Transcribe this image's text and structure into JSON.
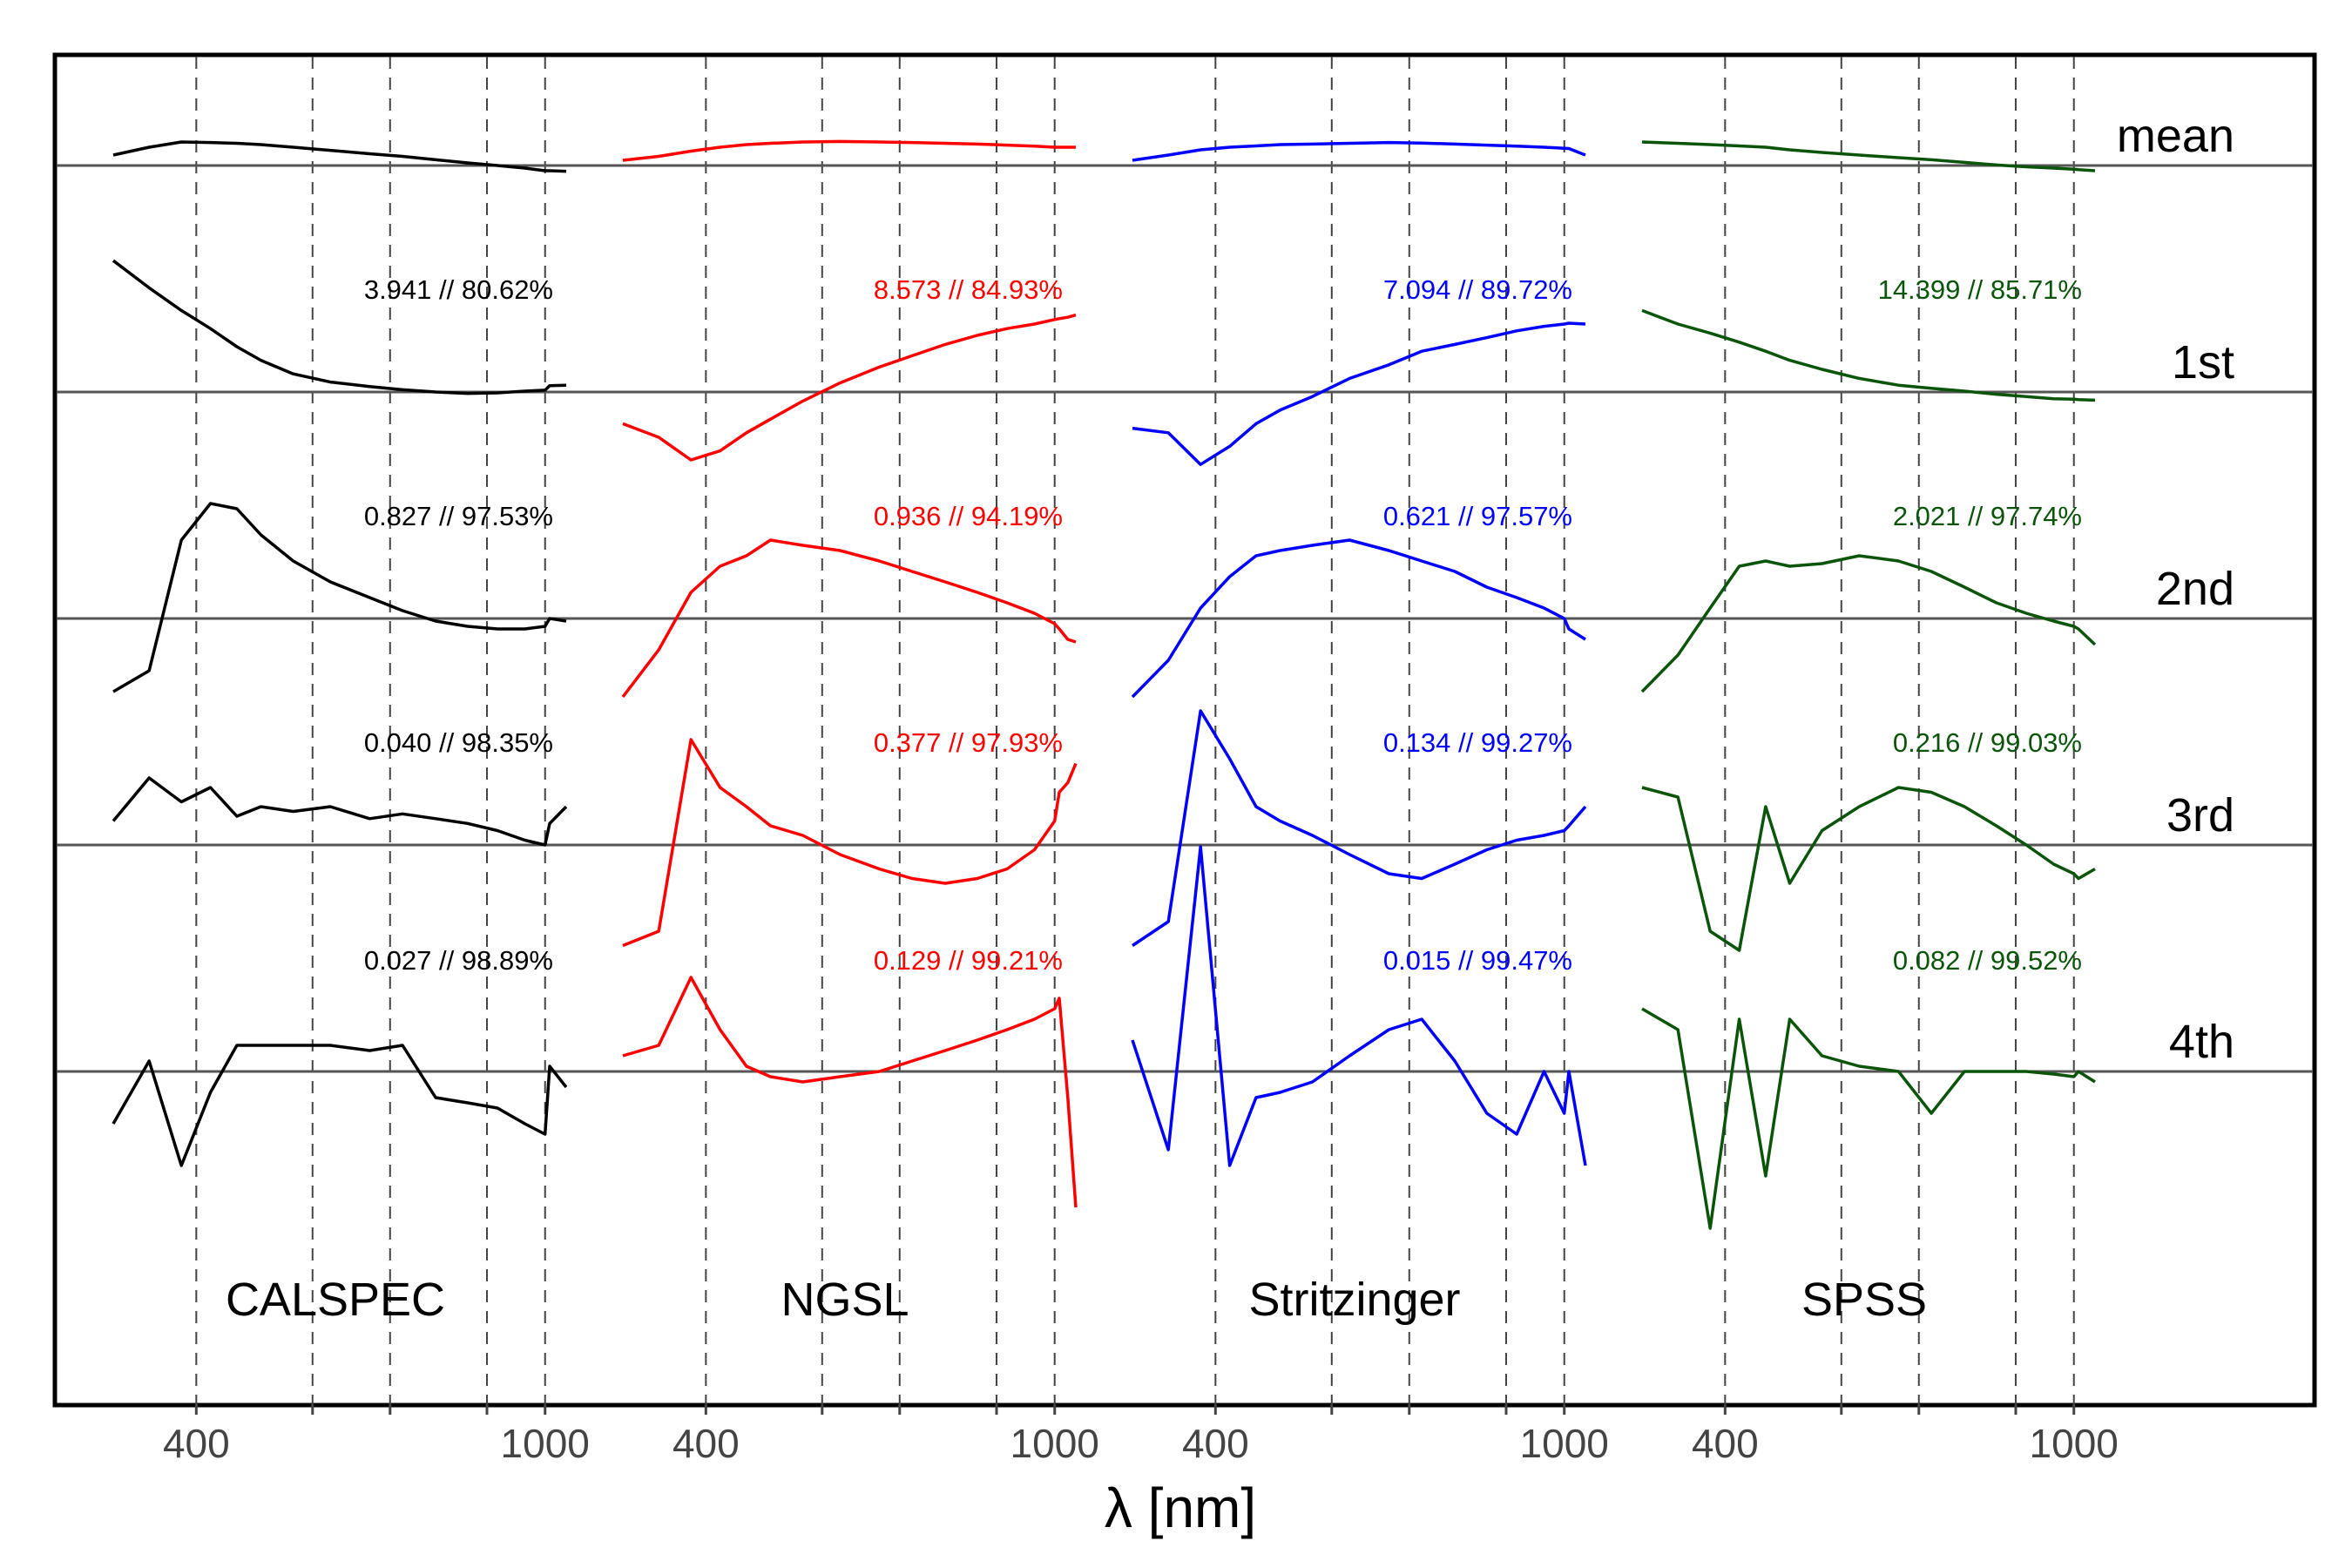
{
  "chart_data": {
    "type": "line",
    "title": "",
    "xlabel": "λ [nm]",
    "ylabel": "",
    "x_scale": "reciprocal",
    "xlim": [
      350,
      1100
    ],
    "xticks": [
      400,
      500,
      600,
      800,
      1000
    ],
    "xtick_labels": [
      "400",
      "",
      "",
      "",
      "1000"
    ],
    "grid": "vertical dashed at ticks",
    "rows": [
      "mean",
      "1st",
      "2nd",
      "3rd",
      "4th"
    ],
    "panels": [
      {
        "name": "CALSPEC",
        "color": "#000000",
        "annotations": [
          "3.941 // 80.62%",
          "0.827 // 97.53%",
          "0.040 // 98.35%",
          "0.027 // 98.89%"
        ],
        "series": {
          "x": [
            350,
            370,
            390,
            410,
            430,
            450,
            480,
            520,
            570,
            620,
            680,
            750,
            830,
            920,
            1000,
            1020,
            1100
          ],
          "mean": [
            0.4,
            0.7,
            0.9,
            0.88,
            0.85,
            0.8,
            0.7,
            0.58,
            0.45,
            0.35,
            0.22,
            0.1,
            0.0,
            -0.1,
            -0.2,
            -0.2,
            -0.22
          ],
          "1st": [
            2.9,
            2.3,
            1.8,
            1.4,
            1.0,
            0.7,
            0.4,
            0.22,
            0.12,
            0.05,
            0.0,
            -0.03,
            -0.02,
            0.02,
            0.04,
            0.14,
            0.15
          ],
          "2nd": [
            -1.4,
            -1.0,
            1.5,
            2.2,
            2.1,
            1.6,
            1.1,
            0.7,
            0.4,
            0.15,
            -0.05,
            -0.15,
            -0.2,
            -0.2,
            -0.15,
            0.0,
            -0.05
          ],
          "3rd": [
            0.5,
            1.4,
            0.9,
            1.2,
            0.6,
            0.8,
            0.7,
            0.8,
            0.55,
            0.65,
            0.55,
            0.45,
            0.3,
            0.1,
            0.0,
            0.45,
            0.8
          ],
          "4th": [
            -1.0,
            0.2,
            -1.8,
            -0.4,
            0.5,
            0.5,
            0.5,
            0.5,
            0.4,
            0.5,
            -0.5,
            -0.6,
            -0.7,
            -1.0,
            -1.2,
            0.1,
            -0.3
          ]
        }
      },
      {
        "name": "NGSL",
        "color": "#ff0000",
        "annotations": [
          "8.573 // 84.93%",
          "0.936 // 94.19%",
          "0.377 // 97.93%",
          "0.129 // 99.21%"
        ],
        "series": {
          "x": [
            350,
            370,
            390,
            410,
            430,
            450,
            480,
            520,
            570,
            620,
            680,
            750,
            830,
            920,
            1000,
            1020,
            1060,
            1100
          ],
          "mean": [
            0.2,
            0.35,
            0.55,
            0.7,
            0.8,
            0.85,
            0.9,
            0.92,
            0.9,
            0.88,
            0.85,
            0.82,
            0.78,
            0.74,
            0.7,
            0.7,
            0.7,
            0.7
          ],
          "1st": [
            -0.7,
            -1.0,
            -1.5,
            -1.3,
            -0.9,
            -0.6,
            -0.2,
            0.2,
            0.55,
            0.8,
            1.05,
            1.25,
            1.4,
            1.5,
            1.6,
            1.62,
            1.65,
            1.7
          ],
          "2nd": [
            -1.5,
            -0.6,
            0.5,
            1.0,
            1.2,
            1.5,
            1.4,
            1.3,
            1.1,
            0.9,
            0.7,
            0.5,
            0.3,
            0.1,
            -0.1,
            -0.2,
            -0.4,
            -0.45
          ],
          "3rd": [
            -2.1,
            -1.8,
            2.2,
            1.2,
            0.8,
            0.4,
            0.2,
            -0.2,
            -0.5,
            -0.7,
            -0.8,
            -0.7,
            -0.5,
            -0.1,
            0.5,
            1.1,
            1.3,
            1.7
          ],
          "4th": [
            0.3,
            0.5,
            1.8,
            0.8,
            0.1,
            -0.1,
            -0.2,
            -0.1,
            0.0,
            0.2,
            0.4,
            0.6,
            0.8,
            1.0,
            1.2,
            1.4,
            -0.5,
            -2.6
          ]
        }
      },
      {
        "name": "Stritzinger",
        "color": "#0000ff",
        "annotations": [
          "7.094 // 89.72%",
          "0.621 // 97.57%",
          "0.134 // 99.27%",
          "0.015 // 99.47%"
        ],
        "series": {
          "x": [
            350,
            370,
            390,
            410,
            430,
            450,
            480,
            520,
            570,
            620,
            680,
            750,
            830,
            920,
            1000,
            1020,
            1100
          ],
          "mean": [
            0.2,
            0.4,
            0.6,
            0.7,
            0.75,
            0.8,
            0.82,
            0.85,
            0.88,
            0.86,
            0.82,
            0.78,
            0.74,
            0.7,
            0.66,
            0.65,
            0.4
          ],
          "1st": [
            -0.8,
            -0.9,
            -1.6,
            -1.2,
            -0.7,
            -0.4,
            -0.1,
            0.3,
            0.6,
            0.9,
            1.05,
            1.2,
            1.35,
            1.45,
            1.5,
            1.52,
            1.5
          ],
          "2nd": [
            -1.5,
            -0.8,
            0.2,
            0.8,
            1.2,
            1.3,
            1.4,
            1.5,
            1.3,
            1.1,
            0.9,
            0.6,
            0.4,
            0.2,
            0.0,
            -0.2,
            -0.4
          ],
          "3rd": [
            -2.1,
            -1.6,
            2.8,
            1.8,
            0.8,
            0.5,
            0.2,
            -0.2,
            -0.6,
            -0.7,
            -0.4,
            -0.1,
            0.1,
            0.2,
            0.3,
            0.4,
            0.8
          ],
          "4th": [
            0.6,
            -1.5,
            4.3,
            -1.8,
            -0.5,
            -0.4,
            -0.2,
            0.3,
            0.8,
            1.0,
            0.2,
            -0.8,
            -1.2,
            0.0,
            -0.8,
            0.0,
            -1.8
          ]
        }
      },
      {
        "name": "SPSS",
        "color": "#0b550b",
        "annotations": [
          "14.399 // 85.71%",
          "2.021 // 97.74%",
          "0.216 // 99.03%",
          "0.082 // 99.52%"
        ],
        "series": {
          "x": [
            350,
            370,
            390,
            410,
            430,
            450,
            480,
            520,
            570,
            620,
            680,
            750,
            830,
            920,
            1000,
            1020,
            1100
          ],
          "mean": [
            0.9,
            0.85,
            0.8,
            0.75,
            0.7,
            0.6,
            0.5,
            0.4,
            0.3,
            0.22,
            0.12,
            0.02,
            -0.05,
            -0.1,
            -0.14,
            -0.16,
            -0.2
          ],
          "1st": [
            1.8,
            1.5,
            1.3,
            1.1,
            0.9,
            0.7,
            0.5,
            0.3,
            0.15,
            0.08,
            0.02,
            -0.05,
            -0.1,
            -0.15,
            -0.16,
            -0.17,
            -0.18
          ],
          "2nd": [
            -1.4,
            -0.7,
            0.2,
            1.0,
            1.1,
            1.0,
            1.05,
            1.2,
            1.1,
            0.9,
            0.6,
            0.3,
            0.1,
            -0.05,
            -0.15,
            -0.2,
            -0.5
          ],
          "3rd": [
            1.2,
            1.0,
            -1.8,
            -2.2,
            0.8,
            -0.8,
            0.3,
            0.8,
            1.2,
            1.1,
            0.8,
            0.4,
            0.0,
            -0.4,
            -0.6,
            -0.7,
            -0.5
          ],
          "4th": [
            1.2,
            0.8,
            -3.0,
            1.0,
            -2.0,
            1.0,
            0.3,
            0.1,
            0.0,
            -0.8,
            0.0,
            0.0,
            0.0,
            -0.05,
            -0.1,
            0.0,
            -0.2
          ]
        }
      }
    ]
  }
}
